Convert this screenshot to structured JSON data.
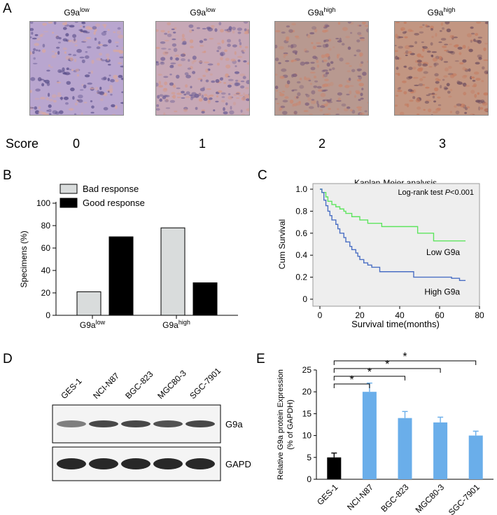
{
  "panels": {
    "A": "A",
    "B": "B",
    "C": "C",
    "D": "D",
    "E": "E"
  },
  "panelA": {
    "images": [
      {
        "label_base": "G9a",
        "label_sup": "low",
        "score": "0",
        "tone": "#b9a6cf"
      },
      {
        "label_base": "G9a",
        "label_sup": "low",
        "score": "1",
        "tone": "#c7a8b6"
      },
      {
        "label_base": "G9a",
        "label_sup": "high",
        "score": "2",
        "tone": "#b89990"
      },
      {
        "label_base": "G9a",
        "label_sup": "high",
        "score": "3",
        "tone": "#c29682"
      }
    ],
    "score_label": "Score"
  },
  "panelD": {
    "lanes": [
      "GES-1",
      "NCI-N87",
      "BGC-823",
      "MGC80-3",
      "SGC-7901"
    ],
    "blots": [
      {
        "name": "G9a",
        "intensity": [
          0.55,
          0.85,
          0.85,
          0.8,
          0.85
        ]
      },
      {
        "name": "GAPDH",
        "intensity": [
          1,
          1,
          1,
          1,
          1
        ]
      }
    ]
  },
  "chart_data": [
    {
      "type": "bar",
      "panel": "B",
      "categories": [
        {
          "base": "G9a",
          "sup": "low"
        },
        {
          "base": "G9a",
          "sup": "high"
        }
      ],
      "series": [
        {
          "name": "Bad response",
          "values": [
            21,
            78
          ],
          "color": "#d9dcdc"
        },
        {
          "name": "Good response",
          "values": [
            70,
            29
          ],
          "color": "#000000"
        }
      ],
      "ylabel": "Specimens (%)",
      "ylim": [
        0,
        100
      ],
      "yticks": [
        0,
        20,
        40,
        60,
        80,
        100
      ],
      "legend": "top-left"
    },
    {
      "type": "line",
      "panel": "C",
      "title": "Kaplan-Meier analysis",
      "annotation": {
        "text": "Log-rank test ",
        "italic": "P",
        "rest": "<0.001"
      },
      "xlabel": "Survival time(months)",
      "ylabel": "Cum Survival",
      "xlim": [
        0,
        80
      ],
      "ylim": [
        0,
        1
      ],
      "xticks": [
        0,
        20,
        40,
        60,
        80
      ],
      "yticks": [
        "0",
        "0.2",
        "0.4",
        "0.6",
        "0.8",
        "1.0"
      ],
      "series": [
        {
          "name": "Low G9a",
          "color": "#5ee55e",
          "x": [
            1,
            3,
            4,
            6,
            8,
            10,
            12,
            13,
            16,
            20,
            24,
            31,
            40,
            49,
            57,
            73
          ],
          "y": [
            0.97,
            0.93,
            0.89,
            0.86,
            0.84,
            0.82,
            0.8,
            0.78,
            0.75,
            0.72,
            0.69,
            0.66,
            0.66,
            0.6,
            0.53,
            0.53
          ]
        },
        {
          "name": "High G9a",
          "color": "#4a6fc4",
          "x": [
            1,
            2,
            3,
            4,
            5,
            6,
            8,
            9,
            10,
            12,
            13,
            15,
            16,
            18,
            19,
            20,
            22,
            24,
            26,
            30,
            47,
            66,
            70,
            73
          ],
          "y": [
            0.97,
            0.9,
            0.85,
            0.8,
            0.76,
            0.72,
            0.68,
            0.64,
            0.6,
            0.56,
            0.52,
            0.48,
            0.45,
            0.42,
            0.39,
            0.36,
            0.33,
            0.31,
            0.29,
            0.25,
            0.2,
            0.19,
            0.17,
            0.17
          ]
        }
      ]
    },
    {
      "type": "bar",
      "panel": "E",
      "ylabel": "Relative G9a protein Expression",
      "ylabel2": "(% of GAPDH)",
      "categories": [
        "GES-1",
        "NCI-N87",
        "BGC-823",
        "MGC80-3",
        "SGC-7901"
      ],
      "values": [
        5,
        20,
        14,
        13,
        10
      ],
      "errors": [
        1,
        2,
        1.5,
        1.2,
        1
      ],
      "colors": [
        "#000000",
        "#6aaeea",
        "#6aaeea",
        "#6aaeea",
        "#6aaeea"
      ],
      "ylim": [
        0,
        25
      ],
      "yticks": [
        0,
        5,
        10,
        15,
        20,
        25
      ],
      "significance": [
        {
          "from": 0,
          "to": 1,
          "label": "*"
        },
        {
          "from": 0,
          "to": 2,
          "label": "*"
        },
        {
          "from": 0,
          "to": 3,
          "label": "*"
        },
        {
          "from": 0,
          "to": 4,
          "label": "*"
        }
      ]
    }
  ]
}
